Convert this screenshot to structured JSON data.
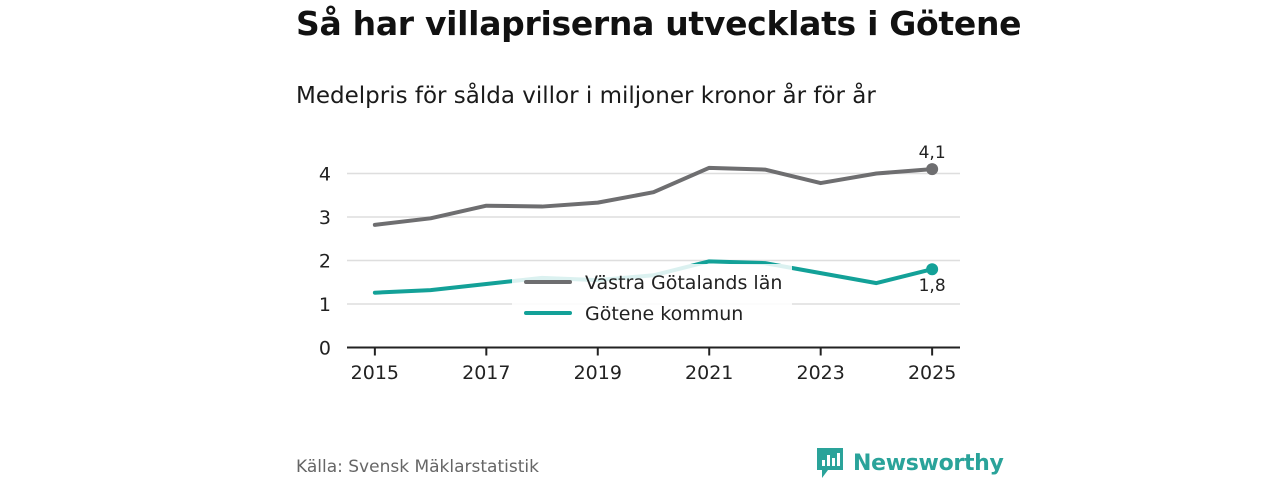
{
  "title": "Så har villapriserna utvecklats i Götene",
  "subtitle": "Medelpris för sålda villor i miljoner kronor år för år",
  "source": "Källa: Svensk Mäklarstatistik",
  "brand": {
    "name": "Newsworthy",
    "icon": "newsworthy-logo-icon",
    "color": "#2aa39a"
  },
  "chart_data": {
    "type": "line",
    "title": "Så har villapriserna utvecklats i Götene",
    "subtitle": "Medelpris för sålda villor i miljoner kronor år för år",
    "xlabel": "",
    "ylabel": "",
    "x": [
      2015,
      2016,
      2017,
      2018,
      2019,
      2020,
      2021,
      2022,
      2023,
      2024,
      2025
    ],
    "xticks": [
      2015,
      2017,
      2019,
      2021,
      2023,
      2025
    ],
    "xtick_labels": [
      "2015",
      "2017",
      "2019",
      "2021",
      "2023",
      "2025"
    ],
    "ylim": [
      0,
      4.3
    ],
    "yticks": [
      0,
      1,
      2,
      3,
      4
    ],
    "ytick_labels": [
      "0",
      "1",
      "2",
      "3",
      "4"
    ],
    "grid": true,
    "legend_position": "center",
    "series": [
      {
        "name": "Västra Götalands län",
        "color": "#6e6e70",
        "values": [
          2.82,
          2.97,
          3.26,
          3.24,
          3.33,
          3.57,
          4.13,
          4.09,
          3.78,
          4.0,
          4.1
        ],
        "end_label": "4,1"
      },
      {
        "name": "Götene kommun",
        "color": "#13a198",
        "values": [
          1.26,
          1.32,
          1.46,
          1.6,
          1.55,
          1.66,
          1.98,
          1.94,
          1.71,
          1.48,
          1.8
        ],
        "end_label": "1,8"
      }
    ]
  }
}
